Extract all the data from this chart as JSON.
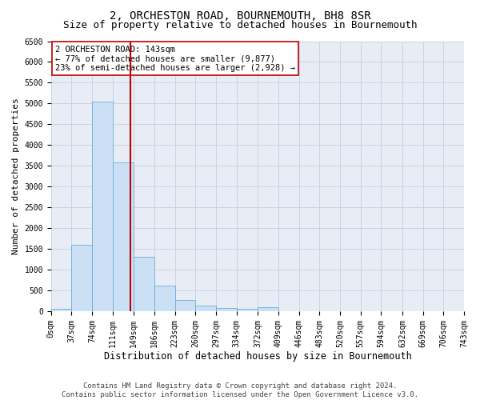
{
  "title": "2, ORCHESTON ROAD, BOURNEMOUTH, BH8 8SR",
  "subtitle": "Size of property relative to detached houses in Bournemouth",
  "xlabel": "Distribution of detached houses by size in Bournemouth",
  "ylabel": "Number of detached properties",
  "footer_line1": "Contains HM Land Registry data © Crown copyright and database right 2024.",
  "footer_line2": "Contains public sector information licensed under the Open Government Licence v3.0.",
  "annotation_line1": "2 ORCHESTON ROAD: 143sqm",
  "annotation_line2": "← 77% of detached houses are smaller (9,877)",
  "annotation_line3": "23% of semi-detached houses are larger (2,928) →",
  "bar_color": "#cce0f5",
  "bar_edge_color": "#6aaed6",
  "vline_color": "#c00000",
  "vline_x": 143,
  "ylim": [
    0,
    6500
  ],
  "bin_edges": [
    0,
    37,
    74,
    111,
    149,
    186,
    223,
    260,
    297,
    334,
    372,
    409,
    446,
    483,
    520,
    557,
    594,
    632,
    669,
    706,
    743
  ],
  "bar_heights": [
    55,
    1600,
    5050,
    3580,
    1310,
    620,
    275,
    130,
    80,
    50,
    95,
    0,
    0,
    0,
    0,
    0,
    0,
    0,
    0,
    0
  ],
  "background_color": "#ffffff",
  "plot_bg_color": "#e8edf5",
  "grid_color": "#c8d4e8",
  "title_fontsize": 10,
  "subtitle_fontsize": 9,
  "xlabel_fontsize": 8.5,
  "ylabel_fontsize": 8,
  "tick_fontsize": 7,
  "annotation_fontsize": 7.5,
  "footer_fontsize": 6.5,
  "annotation_box_color": "#ffffff",
  "annotation_box_edge": "#c00000"
}
